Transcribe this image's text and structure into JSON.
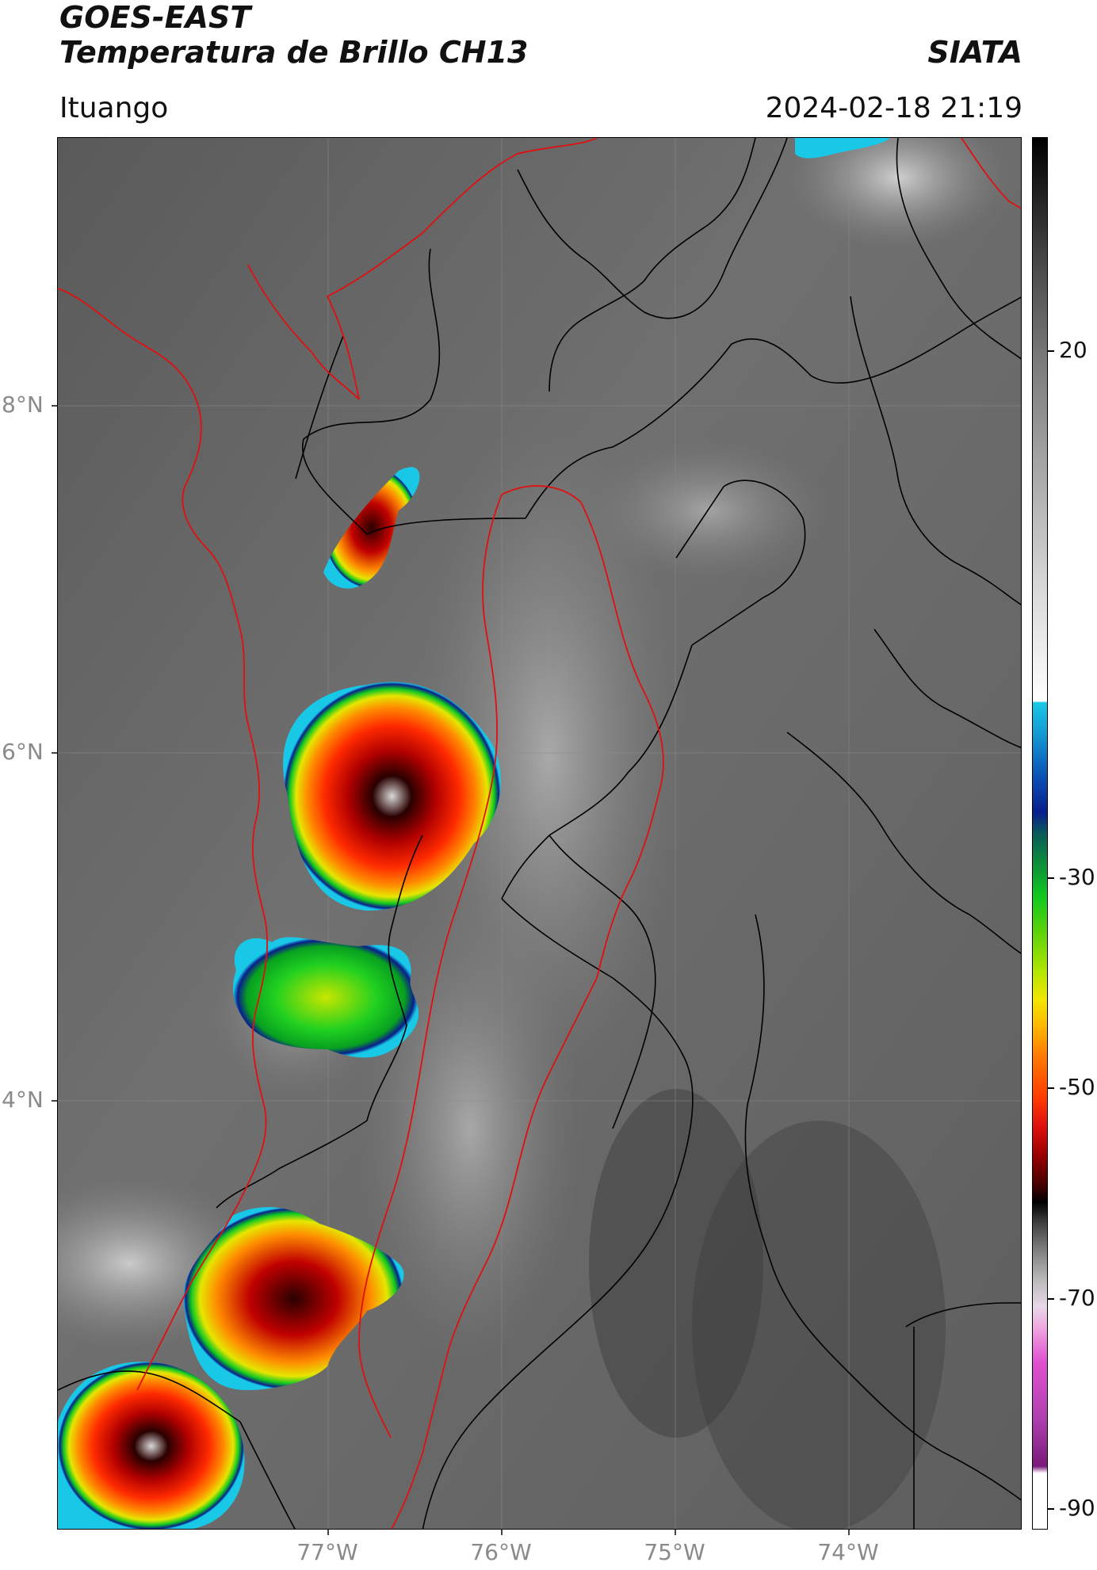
{
  "header": {
    "title_line1": "GOES-EAST",
    "title_line2": "Temperatura de Brillo CH13",
    "brand": "SIATA",
    "region": "Ituango",
    "timestamp": "2024-02-18 21:19"
  },
  "axes": {
    "lat_labels": [
      "8°N",
      "6°N",
      "4°N"
    ],
    "lon_labels": [
      "77°W",
      "76°W",
      "75°W",
      "74°W"
    ]
  },
  "colorbar": {
    "labels": [
      "20",
      "-30",
      "-50",
      "-70",
      "-90"
    ],
    "colors": {
      "gray_ramp": [
        "#000000",
        "#ffffff"
      ],
      "cyan": "#19c8e6",
      "blue": "#0a1e8c",
      "green": "#10c820",
      "yellow": "#f2e600",
      "orange": "#ff7a00",
      "red": "#e01010",
      "darkred": "#3c0000",
      "magenta": "#d23cd2"
    }
  },
  "map": {
    "border_color_country": "#000000",
    "border_color_region": "#e01010",
    "background_gray": "#6e6e6e"
  }
}
